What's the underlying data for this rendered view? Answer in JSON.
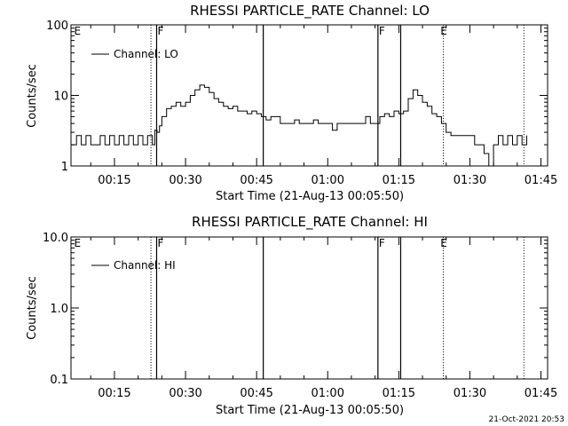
{
  "footer_timestamp": "21-Oct-2021 20:53",
  "chart_data": [
    {
      "type": "line",
      "title": "RHESSI PARTICLE_RATE Channel: LO",
      "xlabel": "Start Time (21-Aug-13 00:05:50)",
      "ylabel": "Counts/sec",
      "y_scale": "log",
      "ylim": [
        1,
        100
      ],
      "y_ticks": [
        "1",
        "10",
        "100"
      ],
      "x_unit": "minutes after 00:00",
      "xlim": [
        5.83,
        106.4
      ],
      "x_ticks": [
        "00:15",
        "00:30",
        "00:45",
        "01:00",
        "01:15",
        "01:30",
        "01:45"
      ],
      "legend": "top-left",
      "series": [
        {
          "name": "Channel: LO",
          "x": [
            5.83,
            7,
            8,
            9,
            10,
            11,
            12,
            13,
            14,
            15,
            16,
            17,
            18,
            19,
            20,
            21,
            22,
            23,
            23.5,
            24,
            24.5,
            25,
            26,
            27,
            28,
            29,
            30,
            31,
            32,
            33,
            34,
            35,
            36,
            37,
            38,
            39,
            40,
            41,
            42,
            43,
            44,
            45,
            46,
            47,
            48,
            49,
            50,
            51,
            52,
            53,
            54,
            55,
            56,
            57,
            58,
            59,
            60,
            61,
            62,
            63,
            64,
            65,
            66,
            67,
            68,
            69,
            70,
            71,
            72,
            73,
            74,
            75,
            76,
            77,
            78,
            79,
            80,
            81,
            82,
            83,
            84,
            85,
            86,
            87,
            88,
            89,
            90,
            91,
            92,
            93,
            94,
            95,
            96,
            97,
            98,
            99,
            100,
            101,
            102
          ],
          "values": [
            2.0,
            2.7,
            2.0,
            2.7,
            2.0,
            2.0,
            2.7,
            2.0,
            2.7,
            2.0,
            2.7,
            2.0,
            2.7,
            2.0,
            2.7,
            2.0,
            2.7,
            2.0,
            3.2,
            3.0,
            3.7,
            5.0,
            6.5,
            7.0,
            8.0,
            7.0,
            8.0,
            10.0,
            12.0,
            14.0,
            13.0,
            11.0,
            9.0,
            8.0,
            7.0,
            6.5,
            7.0,
            6.0,
            6.0,
            5.5,
            6.0,
            5.5,
            5.0,
            4.5,
            5.0,
            5.0,
            4.0,
            4.0,
            4.0,
            4.5,
            4.0,
            4.0,
            4.0,
            4.5,
            4.0,
            4.0,
            4.0,
            3.2,
            4.0,
            4.0,
            4.0,
            4.0,
            4.0,
            4.0,
            5.0,
            4.0,
            4.0,
            5.0,
            5.5,
            5.0,
            6.0,
            5.5,
            6.0,
            9.0,
            12.0,
            10.0,
            8.0,
            7.0,
            5.5,
            5.0,
            4.0,
            3.0,
            2.7,
            2.7,
            2.7,
            2.7,
            2.7,
            2.0,
            2.0,
            1.5,
            1.0,
            2.0,
            2.7,
            2.0,
            2.7,
            2.0,
            2.7,
            2.0,
            2.7
          ]
        }
      ],
      "annotations": [
        {
          "text": "E",
          "x": 6.3
        },
        {
          "text": "F",
          "x": 23.9
        },
        {
          "text": "F",
          "x": 70.6
        },
        {
          "text": "E",
          "x": 83.6
        }
      ],
      "vlines_solid": [
        23.9,
        46.4,
        70.6,
        75.4
      ],
      "vlines_dotted": [
        22.7,
        84.4,
        101.4
      ]
    },
    {
      "type": "line",
      "title": "RHESSI PARTICLE_RATE Channel: HI",
      "xlabel": "Start Time (21-Aug-13 00:05:50)",
      "ylabel": "Counts/sec",
      "y_scale": "log",
      "ylim": [
        0.1,
        10.0
      ],
      "y_ticks": [
        "0.1",
        "1.0",
        "10.0"
      ],
      "x_unit": "minutes after 00:00",
      "xlim": [
        5.83,
        106.4
      ],
      "x_ticks": [
        "00:15",
        "00:30",
        "00:45",
        "01:00",
        "01:15",
        "01:30",
        "01:45"
      ],
      "legend": "top-left",
      "series": [
        {
          "name": "Channel: HI",
          "x": [],
          "values": []
        }
      ],
      "annotations": [
        {
          "text": "E",
          "x": 6.3
        },
        {
          "text": "F",
          "x": 23.9
        },
        {
          "text": "F",
          "x": 70.6
        },
        {
          "text": "E",
          "x": 83.6
        }
      ],
      "vlines_solid": [
        23.9,
        46.4,
        70.6,
        75.4
      ],
      "vlines_dotted": [
        22.7,
        84.4,
        101.4
      ]
    }
  ]
}
